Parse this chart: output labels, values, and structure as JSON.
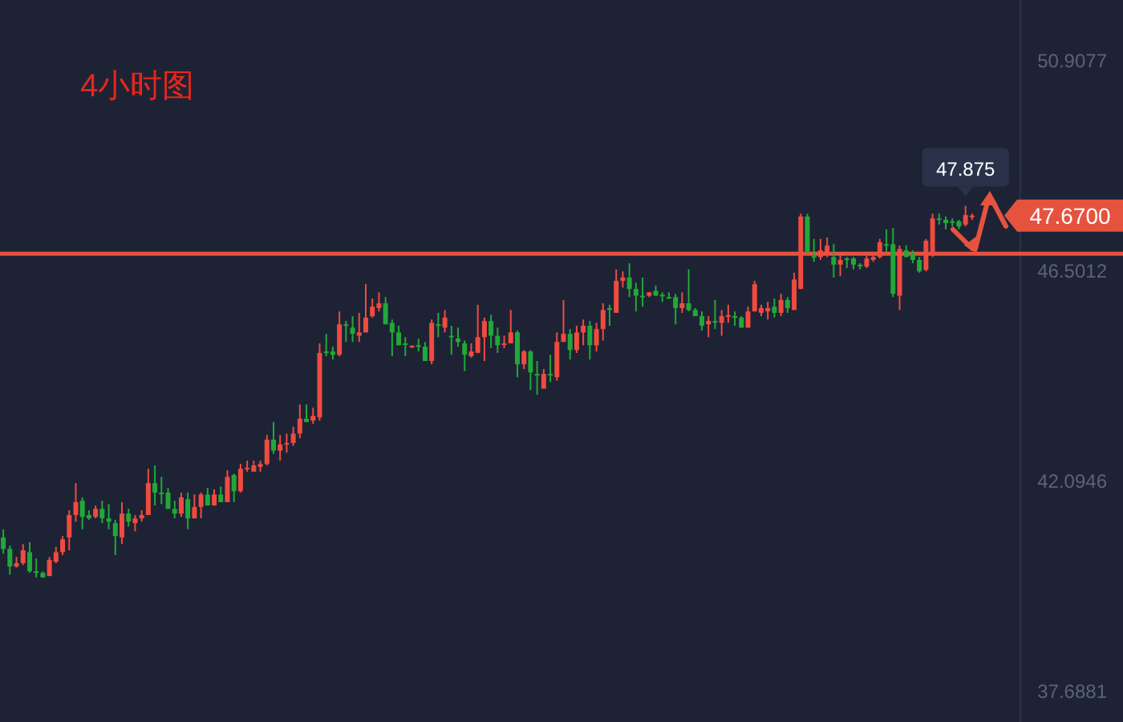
{
  "chart_data": {
    "type": "candlestick",
    "title": "4小时图",
    "categories": [
      null,
      null,
      null,
      null,
      null,
      null,
      null,
      null,
      null,
      null,
      null,
      null,
      null,
      null,
      null,
      null,
      null,
      null,
      null,
      null,
      null,
      null,
      null,
      null,
      null,
      null,
      null,
      null,
      null,
      null,
      null,
      null,
      null,
      null,
      null,
      null,
      null,
      null,
      null,
      null,
      null,
      null,
      null,
      null,
      null,
      null,
      null,
      null,
      null,
      null,
      null,
      null,
      null,
      null,
      null,
      null,
      null,
      null,
      null,
      null,
      null,
      null,
      null,
      null,
      null,
      null,
      null,
      null,
      null,
      null,
      null,
      null,
      null,
      null,
      null,
      null,
      null,
      null,
      null,
      null,
      null,
      null,
      null,
      null,
      null,
      null,
      null,
      null,
      null,
      null,
      null,
      null,
      null,
      null,
      null,
      null,
      null,
      null,
      null,
      null,
      null,
      null,
      null,
      null,
      null,
      null,
      null,
      null,
      null,
      null,
      null,
      null,
      null,
      null,
      null,
      null,
      null,
      null,
      null,
      null,
      null,
      null,
      null,
      null,
      null,
      null,
      null,
      null,
      null,
      null,
      null,
      null,
      null,
      null,
      null,
      null,
      null,
      null,
      null,
      null,
      null,
      null,
      null,
      null,
      null,
      null,
      null,
      null
    ],
    "ohlc": [
      [
        40.92,
        41.09,
        40.58,
        40.68
      ],
      [
        40.68,
        40.75,
        40.14,
        40.31
      ],
      [
        40.31,
        40.51,
        40.29,
        40.38
      ],
      [
        40.38,
        40.78,
        40.34,
        40.65
      ],
      [
        40.61,
        40.82,
        40.18,
        40.21
      ],
      [
        40.21,
        40.48,
        40.08,
        40.19
      ],
      [
        40.18,
        40.21,
        40.08,
        40.08
      ],
      [
        40.11,
        40.51,
        40.11,
        40.45
      ],
      [
        40.41,
        40.72,
        40.38,
        40.61
      ],
      [
        40.61,
        40.95,
        40.55,
        40.88
      ],
      [
        40.92,
        41.49,
        40.65,
        41.39
      ],
      [
        41.39,
        42.06,
        41.25,
        41.66
      ],
      [
        41.69,
        41.76,
        41.09,
        41.35
      ],
      [
        41.39,
        41.49,
        41.29,
        41.32
      ],
      [
        41.35,
        41.59,
        41.32,
        41.52
      ],
      [
        41.52,
        41.69,
        41.22,
        41.32
      ],
      [
        41.32,
        41.62,
        41.09,
        41.25
      ],
      [
        41.22,
        41.29,
        40.55,
        40.95
      ],
      [
        40.92,
        41.66,
        40.78,
        41.42
      ],
      [
        41.42,
        41.52,
        41.15,
        41.25
      ],
      [
        41.22,
        41.39,
        41.05,
        41.32
      ],
      [
        41.32,
        41.49,
        41.25,
        41.39
      ],
      [
        41.39,
        42.36,
        41.39,
        42.06
      ],
      [
        42.06,
        42.43,
        41.59,
        41.86
      ],
      [
        41.86,
        42.19,
        41.62,
        41.84
      ],
      [
        41.86,
        41.96,
        41.52,
        41.52
      ],
      [
        41.52,
        41.69,
        41.32,
        41.42
      ],
      [
        41.42,
        41.86,
        41.35,
        41.76
      ],
      [
        41.72,
        41.86,
        41.09,
        41.32
      ],
      [
        41.32,
        41.82,
        41.32,
        41.56
      ],
      [
        41.56,
        41.86,
        41.32,
        41.82
      ],
      [
        41.82,
        41.96,
        41.59,
        41.59
      ],
      [
        41.59,
        41.93,
        41.59,
        41.82
      ],
      [
        41.82,
        41.99,
        41.66,
        41.66
      ],
      [
        41.66,
        42.33,
        41.66,
        42.19
      ],
      [
        42.23,
        42.26,
        41.66,
        41.89
      ],
      [
        41.89,
        42.46,
        41.86,
        42.36
      ],
      [
        42.36,
        42.53,
        42.3,
        42.38
      ],
      [
        42.3,
        42.53,
        42.3,
        42.43
      ],
      [
        42.4,
        42.53,
        42.3,
        42.46
      ],
      [
        42.46,
        43.07,
        42.43,
        42.97
      ],
      [
        42.97,
        43.34,
        42.67,
        42.74
      ],
      [
        42.74,
        43.07,
        42.53,
        42.87
      ],
      [
        42.87,
        43.1,
        42.7,
        42.9
      ],
      [
        42.9,
        43.24,
        42.84,
        43.1
      ],
      [
        43.1,
        43.71,
        43.0,
        43.41
      ],
      [
        43.41,
        43.71,
        43.34,
        43.34
      ],
      [
        43.37,
        43.64,
        43.3,
        43.47
      ],
      [
        43.44,
        44.99,
        43.37,
        44.79
      ],
      [
        44.82,
        45.19,
        44.72,
        44.79
      ],
      [
        44.82,
        44.92,
        44.65,
        44.75
      ],
      [
        44.75,
        45.66,
        44.72,
        45.39
      ],
      [
        45.39,
        45.46,
        45.02,
        45.36
      ],
      [
        45.32,
        45.56,
        45.02,
        45.19
      ],
      [
        45.15,
        45.63,
        45.02,
        45.22
      ],
      [
        45.22,
        46.23,
        45.22,
        45.53
      ],
      [
        45.56,
        45.93,
        45.53,
        45.76
      ],
      [
        45.73,
        46.06,
        45.66,
        45.83
      ],
      [
        45.83,
        45.96,
        45.39,
        45.39
      ],
      [
        45.42,
        45.49,
        44.72,
        45.22
      ],
      [
        45.22,
        45.36,
        44.95,
        44.95
      ],
      [
        44.99,
        45.12,
        44.72,
        44.97
      ],
      [
        44.92,
        44.95,
        44.89,
        44.94
      ],
      [
        44.95,
        45.09,
        44.82,
        44.93
      ],
      [
        44.92,
        45.02,
        44.62,
        44.62
      ],
      [
        44.62,
        45.49,
        44.55,
        45.42
      ],
      [
        45.39,
        45.63,
        45.12,
        45.37
      ],
      [
        45.32,
        45.69,
        45.22,
        45.53
      ],
      [
        45.15,
        45.36,
        44.75,
        45.12
      ],
      [
        45.09,
        45.32,
        44.92,
        45.02
      ],
      [
        44.99,
        45.05,
        44.41,
        44.75
      ],
      [
        44.72,
        44.99,
        44.69,
        44.82
      ],
      [
        44.79,
        45.8,
        44.79,
        45.12
      ],
      [
        45.12,
        45.53,
        44.62,
        45.46
      ],
      [
        45.46,
        45.59,
        44.89,
        45.15
      ],
      [
        45.15,
        45.32,
        44.79,
        44.95
      ],
      [
        44.97,
        45.15,
        44.89,
        44.99
      ],
      [
        44.99,
        45.69,
        44.99,
        45.22
      ],
      [
        45.22,
        45.26,
        44.28,
        44.55
      ],
      [
        44.55,
        44.85,
        44.45,
        44.82
      ],
      [
        44.82,
        44.85,
        44.01,
        44.38
      ],
      [
        44.35,
        44.62,
        43.91,
        44.33
      ],
      [
        44.04,
        44.45,
        44.04,
        44.35
      ],
      [
        44.35,
        44.75,
        44.18,
        44.33
      ],
      [
        44.28,
        45.22,
        44.21,
        45.02
      ],
      [
        45.02,
        45.9,
        45.02,
        45.19
      ],
      [
        45.19,
        45.29,
        44.65,
        44.85
      ],
      [
        44.85,
        45.36,
        44.79,
        45.22
      ],
      [
        45.22,
        45.49,
        44.95,
        45.36
      ],
      [
        45.36,
        45.46,
        44.65,
        44.95
      ],
      [
        44.95,
        45.42,
        44.82,
        45.29
      ],
      [
        45.29,
        45.83,
        45.05,
        45.69
      ],
      [
        45.73,
        45.8,
        45.36,
        45.69
      ],
      [
        45.63,
        46.54,
        45.63,
        46.3
      ],
      [
        46.3,
        46.5,
        46.16,
        46.37
      ],
      [
        46.37,
        46.67,
        45.96,
        46.13
      ],
      [
        46.13,
        46.26,
        45.66,
        45.99
      ],
      [
        45.99,
        46.37,
        45.76,
        45.97
      ],
      [
        45.99,
        46.06,
        45.96,
        46.06
      ],
      [
        46.09,
        46.2,
        45.99,
        45.99
      ],
      [
        46.01,
        46.06,
        45.86,
        45.99
      ],
      [
        45.96,
        46.06,
        45.93,
        45.94
      ],
      [
        45.96,
        46.03,
        45.39,
        45.73
      ],
      [
        45.73,
        46.06,
        45.63,
        45.83
      ],
      [
        45.83,
        46.54,
        45.66,
        45.69
      ],
      [
        45.69,
        45.73,
        45.56,
        45.56
      ],
      [
        45.56,
        45.66,
        45.26,
        45.36
      ],
      [
        45.39,
        45.56,
        45.12,
        45.46
      ],
      [
        45.46,
        45.9,
        45.29,
        45.44
      ],
      [
        45.42,
        45.69,
        45.15,
        45.56
      ],
      [
        45.56,
        45.8,
        45.42,
        45.58
      ],
      [
        45.56,
        45.66,
        45.36,
        45.54
      ],
      [
        45.53,
        45.56,
        45.32,
        45.32
      ],
      [
        45.32,
        45.76,
        45.32,
        45.66
      ],
      [
        45.66,
        46.3,
        45.66,
        46.23
      ],
      [
        45.63,
        45.8,
        45.56,
        45.73
      ],
      [
        45.66,
        45.86,
        45.49,
        45.73
      ],
      [
        45.76,
        45.93,
        45.53,
        45.63
      ],
      [
        45.63,
        46.03,
        45.56,
        45.9
      ],
      [
        45.9,
        45.96,
        45.63,
        45.73
      ],
      [
        45.69,
        46.47,
        45.69,
        46.33
      ],
      [
        46.13,
        47.71,
        46.13,
        47.65
      ],
      [
        47.65,
        47.71,
        46.87,
        46.91
      ],
      [
        46.82,
        47.18,
        46.7,
        46.8
      ],
      [
        46.8,
        47.18,
        46.74,
        46.94
      ],
      [
        46.87,
        47.21,
        46.8,
        47.04
      ],
      [
        46.8,
        47.07,
        46.37,
        46.64
      ],
      [
        46.64,
        46.87,
        46.4,
        46.74
      ],
      [
        46.77,
        46.8,
        46.57,
        46.75
      ],
      [
        46.77,
        46.8,
        46.54,
        46.64
      ],
      [
        46.64,
        46.67,
        46.54,
        46.62
      ],
      [
        46.6,
        46.87,
        46.57,
        46.77
      ],
      [
        46.74,
        46.91,
        46.7,
        46.8
      ],
      [
        46.8,
        47.18,
        46.77,
        47.11
      ],
      [
        47.07,
        47.38,
        46.91,
        47.05
      ],
      [
        47.07,
        47.41,
        45.96,
        46.03
      ],
      [
        45.99,
        47.04,
        45.69,
        46.97
      ],
      [
        46.94,
        47.04,
        46.8,
        46.8
      ],
      [
        46.87,
        46.94,
        46.67,
        46.74
      ],
      [
        46.74,
        46.8,
        46.47,
        46.5
      ],
      [
        46.53,
        47.18,
        46.5,
        47.14
      ],
      [
        46.87,
        47.71,
        46.8,
        47.61
      ],
      [
        47.61,
        47.71,
        47.48,
        47.59
      ],
      [
        47.58,
        47.65,
        47.38,
        47.51
      ],
      [
        47.55,
        47.61,
        47.44,
        47.53
      ],
      [
        47.55,
        47.58,
        47.38,
        47.44
      ],
      [
        47.48,
        47.875,
        47.44,
        47.68
      ],
      [
        47.64,
        47.71,
        47.58,
        47.67
      ]
    ],
    "ylim": [
      37.05,
      52.19
    ],
    "yticks": [
      50.9077,
      46.5012,
      42.0946,
      37.6881
    ],
    "tick_labels": "y",
    "ref_lines": [
      {
        "axis": "y",
        "value": 46.87,
        "color": "#e5533f"
      }
    ],
    "annotations": [
      "47.875",
      "47.6700"
    ]
  }
}
